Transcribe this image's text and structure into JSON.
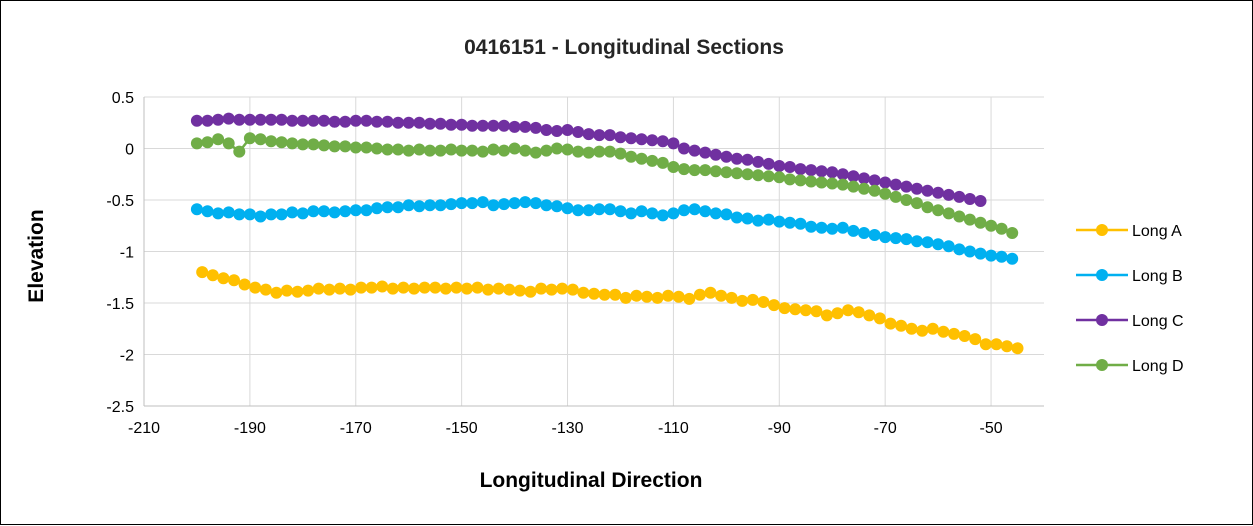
{
  "chart_data": {
    "type": "line",
    "title": "0416151 - Longitudinal Sections",
    "xlabel": "Longitudinal Direction",
    "ylabel": "Elevation",
    "xlim": [
      -210,
      -40
    ],
    "ylim": [
      -2.5,
      0.5
    ],
    "xticks": [
      -210,
      -190,
      -170,
      -150,
      -130,
      -110,
      -90,
      -70,
      -50
    ],
    "yticks": [
      0.5,
      0,
      -0.5,
      -1,
      -1.5,
      -2,
      -2.5
    ],
    "grid": true,
    "legend": "right",
    "series": [
      {
        "name": "Long A",
        "color": "#FFC000",
        "x": [
          -199,
          -197,
          -195,
          -193,
          -191,
          -189,
          -187,
          -185,
          -183,
          -181,
          -179,
          -177,
          -175,
          -173,
          -171,
          -169,
          -167,
          -165,
          -163,
          -161,
          -159,
          -157,
          -155,
          -153,
          -151,
          -149,
          -147,
          -145,
          -143,
          -141,
          -139,
          -137,
          -135,
          -133,
          -131,
          -129,
          -127,
          -125,
          -123,
          -121,
          -119,
          -117,
          -115,
          -113,
          -111,
          -109,
          -107,
          -105,
          -103,
          -101,
          -99,
          -97,
          -95,
          -93,
          -91,
          -89,
          -87,
          -85,
          -83,
          -81,
          -79,
          -77,
          -75,
          -73,
          -71,
          -69,
          -67,
          -65,
          -63,
          -61,
          -59,
          -57,
          -55,
          -53,
          -51,
          -49,
          -47,
          -45
        ],
        "y": [
          -1.2,
          -1.23,
          -1.26,
          -1.28,
          -1.32,
          -1.35,
          -1.37,
          -1.4,
          -1.38,
          -1.39,
          -1.38,
          -1.36,
          -1.37,
          -1.36,
          -1.37,
          -1.35,
          -1.35,
          -1.34,
          -1.36,
          -1.35,
          -1.36,
          -1.35,
          -1.35,
          -1.36,
          -1.35,
          -1.36,
          -1.35,
          -1.37,
          -1.36,
          -1.37,
          -1.38,
          -1.39,
          -1.36,
          -1.37,
          -1.36,
          -1.37,
          -1.4,
          -1.41,
          -1.42,
          -1.42,
          -1.45,
          -1.43,
          -1.44,
          -1.45,
          -1.43,
          -1.44,
          -1.46,
          -1.42,
          -1.4,
          -1.43,
          -1.45,
          -1.48,
          -1.47,
          -1.49,
          -1.52,
          -1.55,
          -1.56,
          -1.57,
          -1.58,
          -1.62,
          -1.6,
          -1.57,
          -1.59,
          -1.62,
          -1.65,
          -1.7,
          -1.72,
          -1.75,
          -1.77,
          -1.75,
          -1.78,
          -1.8,
          -1.82,
          -1.85,
          -1.9,
          -1.9,
          -1.92,
          -1.94
        ]
      },
      {
        "name": "Long B",
        "color": "#00B0F0",
        "x": [
          -200,
          -198,
          -196,
          -194,
          -192,
          -190,
          -188,
          -186,
          -184,
          -182,
          -180,
          -178,
          -176,
          -174,
          -172,
          -170,
          -168,
          -166,
          -164,
          -162,
          -160,
          -158,
          -156,
          -154,
          -152,
          -150,
          -148,
          -146,
          -144,
          -142,
          -140,
          -138,
          -136,
          -134,
          -132,
          -130,
          -128,
          -126,
          -124,
          -122,
          -120,
          -118,
          -116,
          -114,
          -112,
          -110,
          -108,
          -106,
          -104,
          -102,
          -100,
          -98,
          -96,
          -94,
          -92,
          -90,
          -88,
          -86,
          -84,
          -82,
          -80,
          -78,
          -76,
          -74,
          -72,
          -70,
          -68,
          -66,
          -64,
          -62,
          -60,
          -58,
          -56,
          -54,
          -52,
          -50,
          -48,
          -46
        ],
        "y": [
          -0.59,
          -0.61,
          -0.63,
          -0.62,
          -0.64,
          -0.64,
          -0.66,
          -0.64,
          -0.64,
          -0.62,
          -0.63,
          -0.61,
          -0.61,
          -0.62,
          -0.61,
          -0.6,
          -0.6,
          -0.58,
          -0.57,
          -0.57,
          -0.55,
          -0.56,
          -0.55,
          -0.55,
          -0.54,
          -0.53,
          -0.53,
          -0.52,
          -0.55,
          -0.54,
          -0.53,
          -0.52,
          -0.53,
          -0.55,
          -0.56,
          -0.58,
          -0.6,
          -0.6,
          -0.59,
          -0.59,
          -0.61,
          -0.63,
          -0.61,
          -0.63,
          -0.65,
          -0.63,
          -0.6,
          -0.59,
          -0.61,
          -0.63,
          -0.64,
          -0.67,
          -0.68,
          -0.7,
          -0.69,
          -0.71,
          -0.72,
          -0.73,
          -0.76,
          -0.77,
          -0.78,
          -0.77,
          -0.8,
          -0.82,
          -0.84,
          -0.86,
          -0.87,
          -0.88,
          -0.9,
          -0.91,
          -0.93,
          -0.95,
          -0.98,
          -1.0,
          -1.02,
          -1.04,
          -1.05,
          -1.07
        ]
      },
      {
        "name": "Long C",
        "color": "#7030A0",
        "x": [
          -200,
          -198,
          -196,
          -194,
          -192,
          -190,
          -188,
          -186,
          -184,
          -182,
          -180,
          -178,
          -176,
          -174,
          -172,
          -170,
          -168,
          -166,
          -164,
          -162,
          -160,
          -158,
          -156,
          -154,
          -152,
          -150,
          -148,
          -146,
          -144,
          -142,
          -140,
          -138,
          -136,
          -134,
          -132,
          -130,
          -128,
          -126,
          -124,
          -122,
          -120,
          -118,
          -116,
          -114,
          -112,
          -110,
          -108,
          -106,
          -104,
          -102,
          -100,
          -98,
          -96,
          -94,
          -92,
          -90,
          -88,
          -86,
          -84,
          -82,
          -80,
          -78,
          -76,
          -74,
          -72,
          -70,
          -68,
          -66,
          -64,
          -62,
          -60,
          -58,
          -56,
          -54,
          -52
        ],
        "y": [
          0.27,
          0.27,
          0.28,
          0.29,
          0.28,
          0.28,
          0.28,
          0.28,
          0.28,
          0.27,
          0.27,
          0.27,
          0.27,
          0.26,
          0.26,
          0.27,
          0.27,
          0.26,
          0.26,
          0.25,
          0.25,
          0.25,
          0.24,
          0.24,
          0.23,
          0.23,
          0.22,
          0.22,
          0.22,
          0.22,
          0.21,
          0.21,
          0.2,
          0.18,
          0.17,
          0.18,
          0.16,
          0.14,
          0.13,
          0.13,
          0.11,
          0.1,
          0.09,
          0.08,
          0.07,
          0.05,
          0.0,
          -0.02,
          -0.04,
          -0.06,
          -0.08,
          -0.1,
          -0.11,
          -0.13,
          -0.15,
          -0.17,
          -0.18,
          -0.2,
          -0.21,
          -0.22,
          -0.23,
          -0.25,
          -0.27,
          -0.29,
          -0.31,
          -0.33,
          -0.35,
          -0.37,
          -0.39,
          -0.41,
          -0.43,
          -0.45,
          -0.47,
          -0.49,
          -0.51
        ]
      },
      {
        "name": "Long D",
        "color": "#70AD47",
        "x": [
          -200,
          -198,
          -196,
          -194,
          -192,
          -190,
          -188,
          -186,
          -184,
          -182,
          -180,
          -178,
          -176,
          -174,
          -172,
          -170,
          -168,
          -166,
          -164,
          -162,
          -160,
          -158,
          -156,
          -154,
          -152,
          -150,
          -148,
          -146,
          -144,
          -142,
          -140,
          -138,
          -136,
          -134,
          -132,
          -130,
          -128,
          -126,
          -124,
          -122,
          -120,
          -118,
          -116,
          -114,
          -112,
          -110,
          -108,
          -106,
          -104,
          -102,
          -100,
          -98,
          -96,
          -94,
          -92,
          -90,
          -88,
          -86,
          -84,
          -82,
          -80,
          -78,
          -76,
          -74,
          -72,
          -70,
          -68,
          -66,
          -64,
          -62,
          -60,
          -58,
          -56,
          -54,
          -52,
          -50,
          -48,
          -46
        ],
        "y": [
          0.05,
          0.06,
          0.09,
          0.05,
          -0.03,
          0.1,
          0.09,
          0.07,
          0.06,
          0.05,
          0.04,
          0.04,
          0.03,
          0.02,
          0.02,
          0.01,
          0.01,
          0.0,
          -0.01,
          -0.01,
          -0.02,
          -0.01,
          -0.02,
          -0.02,
          -0.01,
          -0.02,
          -0.02,
          -0.03,
          -0.01,
          -0.02,
          0.0,
          -0.02,
          -0.04,
          -0.02,
          0.0,
          -0.01,
          -0.03,
          -0.04,
          -0.03,
          -0.03,
          -0.05,
          -0.08,
          -0.1,
          -0.12,
          -0.14,
          -0.18,
          -0.2,
          -0.21,
          -0.21,
          -0.22,
          -0.23,
          -0.24,
          -0.25,
          -0.26,
          -0.27,
          -0.28,
          -0.3,
          -0.31,
          -0.32,
          -0.33,
          -0.34,
          -0.35,
          -0.37,
          -0.39,
          -0.41,
          -0.44,
          -0.47,
          -0.5,
          -0.53,
          -0.57,
          -0.6,
          -0.63,
          -0.66,
          -0.69,
          -0.72,
          -0.75,
          -0.78,
          -0.82
        ]
      }
    ]
  }
}
